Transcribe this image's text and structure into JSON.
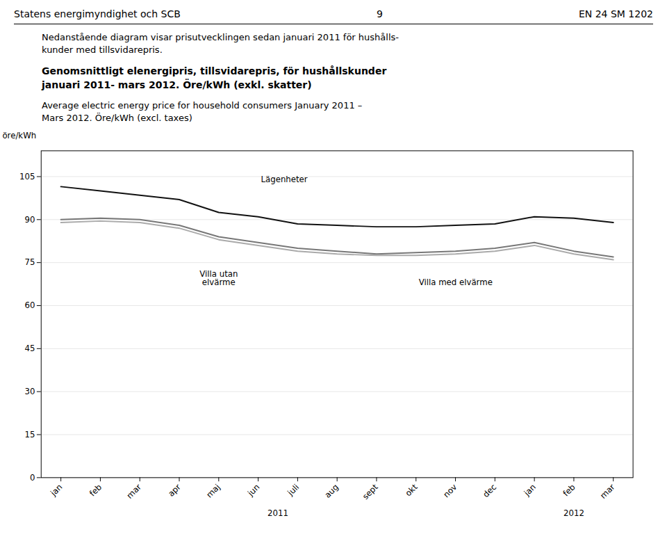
{
  "chart_data": {
    "type": "line",
    "header_left": "Statens energimyndighet och SCB",
    "header_center": "9",
    "header_right": "EN 24 SM 1202",
    "intro": "Nedanstående diagram visar prisutvecklingen sedan januari 2011 för hushålls-\nkunder med tillsvidarepris.",
    "title": "Genomsnittligt elenergipris, tillsvidarepris, för hushållskunder\njanuari 2011- mars 2012. Öre/kWh (exkl. skatter)",
    "subtitle": "Average electric energy price for household consumers January 2011 –\nMars 2012. Öre/kWh (excl. taxes)",
    "y_label": "öre/kWh",
    "categories": [
      "jan",
      "feb",
      "mar",
      "apr",
      "maj",
      "jun",
      "juli",
      "aug",
      "sept",
      "okt",
      "nov",
      "dec",
      "jan",
      "feb",
      "mar"
    ],
    "x_groups": [
      {
        "label": "2011",
        "first": 0,
        "last": 11
      },
      {
        "label": "2012",
        "first": 12,
        "last": 14
      }
    ],
    "series": [
      {
        "name": "Lägenheter",
        "color": "#111111",
        "values": [
          101.5,
          100.0,
          98.5,
          97.0,
          92.5,
          91.0,
          88.5,
          88.0,
          87.5,
          87.5,
          88.0,
          88.5,
          91.0,
          90.5,
          89.0
        ]
      },
      {
        "name": "Villa utan\nelvärme",
        "color": "#777777",
        "values": [
          90.0,
          90.5,
          90.0,
          88.0,
          84.0,
          82.0,
          80.0,
          79.0,
          78.0,
          78.5,
          79.0,
          80.0,
          82.0,
          79.0,
          77.0
        ]
      },
      {
        "name": "Villa med elvärme",
        "color": "#aaaaaa",
        "values": [
          89.0,
          89.5,
          89.0,
          87.0,
          83.0,
          81.0,
          79.0,
          78.0,
          77.5,
          77.5,
          78.0,
          79.0,
          81.0,
          78.0,
          76.0
        ]
      }
    ],
    "ylim": [
      0,
      114
    ],
    "yticks": [
      0,
      15,
      30,
      45,
      60,
      75,
      90,
      105
    ],
    "grid": true
  }
}
